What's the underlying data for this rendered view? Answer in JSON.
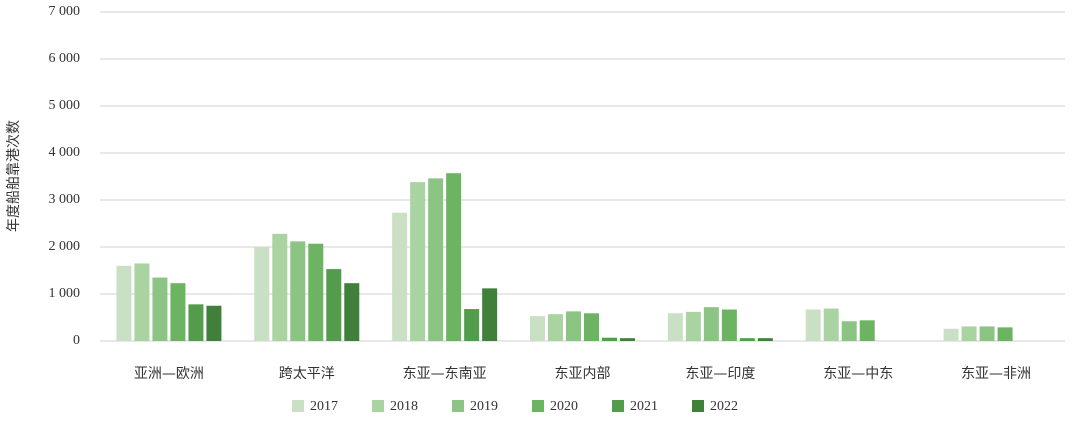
{
  "chart_data": {
    "type": "bar",
    "y_label": "年度船舶靠港次数",
    "categories": [
      "亚洲—欧洲",
      "跨太平洋",
      "东亚—东南亚",
      "东亚内部",
      "东亚—印度",
      "东亚—中东",
      "东亚—非洲"
    ],
    "series": [
      {
        "name": "2017",
        "color": "#c9e0c4",
        "values": [
          1600,
          2000,
          2730,
          530,
          590,
          670,
          260
        ]
      },
      {
        "name": "2018",
        "color": "#a9d3a1",
        "values": [
          1650,
          2280,
          3380,
          570,
          620,
          690,
          310
        ]
      },
      {
        "name": "2019",
        "color": "#8cc484",
        "values": [
          1350,
          2120,
          3460,
          630,
          720,
          420,
          310
        ]
      },
      {
        "name": "2020",
        "color": "#6cb462",
        "values": [
          1230,
          2070,
          3570,
          590,
          670,
          440,
          290
        ]
      },
      {
        "name": "2021",
        "color": "#529c4b",
        "values": [
          780,
          1530,
          680,
          70,
          60,
          null,
          null
        ]
      },
      {
        "name": "2022",
        "color": "#40803b",
        "values": [
          750,
          1230,
          1120,
          60,
          60,
          null,
          null
        ]
      }
    ],
    "ylim": [
      0,
      7000
    ],
    "yticks": [
      0,
      {
        "value": 1000,
        "label": "1 000"
      },
      {
        "value": 2000,
        "label": "2 000"
      },
      {
        "value": 3000,
        "label": "3 000"
      },
      {
        "value": 4000,
        "label": "4 000"
      },
      {
        "value": 5000,
        "label": "5 000"
      },
      {
        "value": 6000,
        "label": "6 000"
      },
      {
        "value": 7000,
        "label": "7 000"
      }
    ],
    "grid": true,
    "legend": "bottom"
  }
}
